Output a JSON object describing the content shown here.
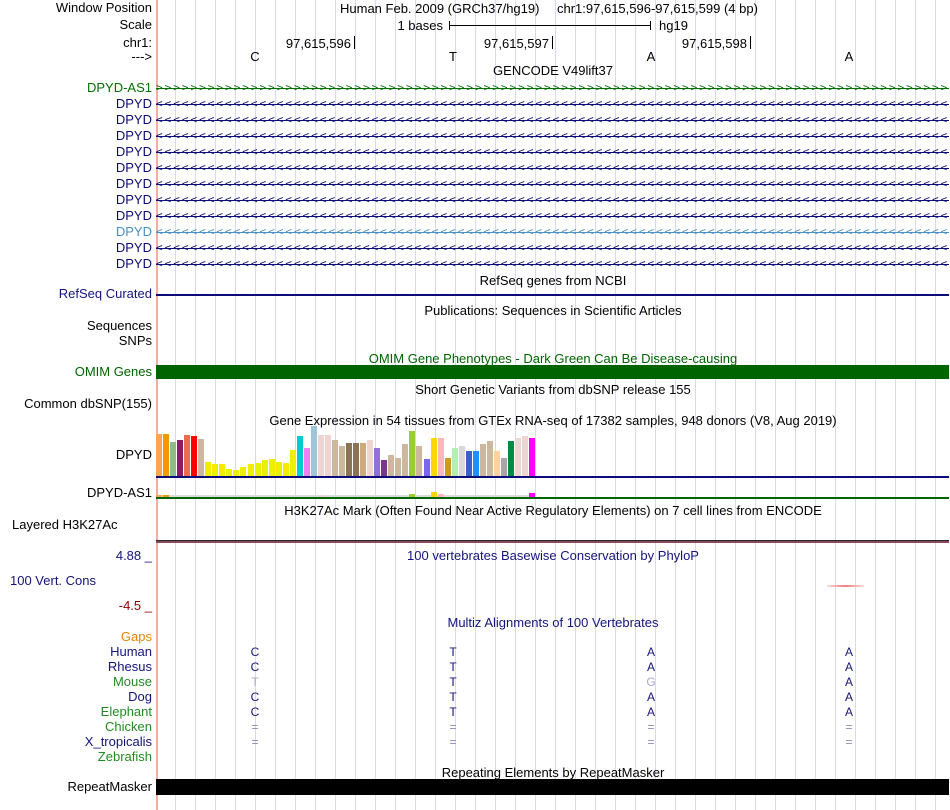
{
  "colors": {
    "navy": "#14147C",
    "gene_navy": "#0C0C78",
    "gene_green": "#007000",
    "gene_lightblue": "#4A90C4",
    "omim_green": "#006400",
    "title_blue": "#14147C",
    "orange": "#E8820C",
    "dark_red": "#8B0000",
    "grid": "#D8D8F0",
    "edge_pink": "#F6ACA4",
    "muted_letter": "#AAAAC8",
    "eq_mark": "#8A8AB8",
    "gtex_dpyd_baseline": "#0C0C78",
    "gtex_as1_baseline": "#006400",
    "repeat_bar": "#000000",
    "h3k_line_top": "#26262E",
    "h3k_line_bottom": "#8A4A5A",
    "phylop_dash": "#F08080"
  },
  "header": {
    "assembly": "Human Feb. 2009 (GRCh37/hg19)",
    "position": "chr1:97,615,596-97,615,599 (4 bp)",
    "window_position_label": "Window Position",
    "scale_label": "Scale",
    "scale_value": "1 bases",
    "scale_right": "hg19",
    "chrom_label": "chr1:",
    "direction_label": "--->",
    "ruler_ticks": [
      {
        "label": "97,615,596"
      },
      {
        "label": "97,615,597"
      },
      {
        "label": "97,615,598"
      }
    ],
    "bases": [
      "C",
      "T",
      "A",
      "A"
    ]
  },
  "gencode": {
    "title": "GENCODE V49lift37",
    "rows": [
      {
        "label": "DPYD-AS1",
        "style": "as1",
        "dir": ">"
      },
      {
        "label": "DPYD",
        "style": "dpyd",
        "dir": "<"
      },
      {
        "label": "DPYD",
        "style": "dpyd",
        "dir": "<"
      },
      {
        "label": "DPYD",
        "style": "dpyd",
        "dir": "<"
      },
      {
        "label": "DPYD",
        "style": "dpyd",
        "dir": "<"
      },
      {
        "label": "DPYD",
        "style": "dpyd",
        "dir": "<"
      },
      {
        "label": "DPYD",
        "style": "dpyd",
        "dir": "<"
      },
      {
        "label": "DPYD",
        "style": "dpyd",
        "dir": "<"
      },
      {
        "label": "DPYD",
        "style": "dpyd",
        "dir": "<"
      },
      {
        "label": "DPYD",
        "style": "dpyd-light",
        "dir": "<"
      },
      {
        "label": "DPYD",
        "style": "dpyd",
        "dir": "<"
      },
      {
        "label": "DPYD",
        "style": "dpyd",
        "dir": "<"
      }
    ]
  },
  "refseq": {
    "title": "RefSeq genes from NCBI",
    "label": "RefSeq Curated"
  },
  "publications": {
    "title": "Publications: Sequences in Scientific Articles",
    "labels": [
      "Sequences",
      "SNPs"
    ]
  },
  "omim": {
    "title": "OMIM Gene Phenotypes - Dark Green Can Be Disease-causing",
    "label": "OMIM Genes"
  },
  "dbsnp": {
    "title": "Short Genetic Variants from dbSNP release 155",
    "label": "Common dbSNP(155)"
  },
  "gtex": {
    "title": "Gene Expression in 54 tissues from GTEx RNA-seq of 17382 samples, 948 donors (V8, Aug 2019)",
    "dpyd_label": "DPYD",
    "as1_label": "DPYD-AS1"
  },
  "chart_data": [
    {
      "type": "bar",
      "gene": "DPYD",
      "title": "Gene Expression in 54 tissues from GTEx RNA-seq of 17382 samples, 948 donors (V8, Aug 2019)",
      "ylabel": "relative expression (bar height px, unlabeled axis)",
      "values": [
        42,
        42,
        34,
        36,
        41,
        40,
        37,
        14,
        12,
        12,
        7,
        6,
        9,
        12,
        13,
        16,
        17,
        14,
        13,
        26,
        40,
        28,
        50,
        41,
        41,
        36,
        30,
        33,
        33,
        33,
        36,
        28,
        16,
        21,
        18,
        32,
        45,
        30,
        17,
        38,
        38,
        18,
        28,
        30,
        25,
        25,
        32,
        35,
        25,
        18,
        35,
        38,
        40,
        38
      ],
      "colors": [
        "#FFA54F",
        "#EE9A00",
        "#8FBC8F",
        "#8B1C62",
        "#EE6A50",
        "#FF0000",
        "#CDB79E",
        "#EEEE00",
        "#EEEE00",
        "#EEEE00",
        "#EEEE00",
        "#EEEE00",
        "#EEEE00",
        "#EEEE00",
        "#EEEE00",
        "#EEEE00",
        "#EEEE00",
        "#EEEE00",
        "#EEEE00",
        "#EEEE00",
        "#00CDCD",
        "#EE82EE",
        "#9FC5D8",
        "#EED5D2",
        "#EED5D2",
        "#CDB79E",
        "#CDB79E",
        "#8B7355",
        "#8B7355",
        "#CDAA7D",
        "#EED5D2",
        "#9370DB",
        "#7A378B",
        "#CDB79E",
        "#CDB79E",
        "#CDB79E",
        "#9ACD32",
        "#CDB79E",
        "#7A67EE",
        "#FFD700",
        "#FFB6C1",
        "#CD9B1D",
        "#B4EEB4",
        "#D9D9D9",
        "#3A5FCD",
        "#1E90FF",
        "#CDB79E",
        "#CDB79E",
        "#FFD39B",
        "#A6A6A6",
        "#008B45",
        "#EED5D2",
        "#EED5D2",
        "#FF00FF"
      ],
      "legend": false,
      "grid": false
    },
    {
      "type": "bar",
      "gene": "DPYD-AS1",
      "ylabel": "near-zero expression in most tissues",
      "baseline_strip_color": "#DCDCDC",
      "nonzero_bars": [
        {
          "index": 0,
          "height": 2,
          "color": "#FFA54F"
        },
        {
          "index": 1,
          "height": 2,
          "color": "#EE9A00"
        },
        {
          "index": 23,
          "height": 2,
          "color": "#EED5D2"
        },
        {
          "index": 36,
          "height": 3,
          "color": "#9ACD32"
        },
        {
          "index": 39,
          "height": 5,
          "color": "#FFD700"
        },
        {
          "index": 40,
          "height": 3,
          "color": "#FFB6C1"
        },
        {
          "index": 51,
          "height": 2,
          "color": "#EED5D2"
        },
        {
          "index": 53,
          "height": 4,
          "color": "#FF00FF"
        }
      ]
    }
  ],
  "h3k27ac": {
    "title": "H3K27Ac Mark (Often Found Near Active Regulatory Elements) on 7 cell lines from ENCODE",
    "label": "Layered H3K27Ac"
  },
  "conservation": {
    "title": "100 vertebrates Basewise Conservation by PhyloP",
    "label": "100 Vert. Cons",
    "max_label": "4.88 _",
    "min_label": "-4.5 _"
  },
  "multiz": {
    "title": "Multiz Alignments of 100 Vertebrates",
    "rows": [
      {
        "label": "Gaps",
        "label_color": "orange",
        "cells": [
          "",
          "",
          "",
          ""
        ]
      },
      {
        "label": "Human",
        "label_color": "navy",
        "cells": [
          "C",
          "T",
          "A",
          "A"
        ],
        "muted": []
      },
      {
        "label": "Rhesus",
        "label_color": "navy",
        "cells": [
          "C",
          "T",
          "A",
          "A"
        ],
        "muted": []
      },
      {
        "label": "Mouse",
        "label_color": "green",
        "cells": [
          "T",
          "T",
          "G",
          "A"
        ],
        "muted": [
          0,
          2
        ]
      },
      {
        "label": "Dog",
        "label_color": "navy",
        "cells": [
          "C",
          "T",
          "A",
          "A"
        ],
        "muted": []
      },
      {
        "label": "Elephant",
        "label_color": "green",
        "cells": [
          "C",
          "T",
          "A",
          "A"
        ],
        "muted": []
      },
      {
        "label": "Chicken",
        "label_color": "green",
        "cells": [
          "=",
          "=",
          "=",
          "="
        ],
        "eq": true
      },
      {
        "label": "X_tropicalis",
        "label_color": "navy",
        "cells": [
          "=",
          "=",
          "=",
          "="
        ],
        "eq": true
      },
      {
        "label": "Zebrafish",
        "label_color": "green",
        "cells": [
          "",
          "",
          "",
          ""
        ]
      }
    ]
  },
  "repeatmasker": {
    "title": "Repeating Elements by RepeatMasker",
    "label": "RepeatMasker"
  }
}
